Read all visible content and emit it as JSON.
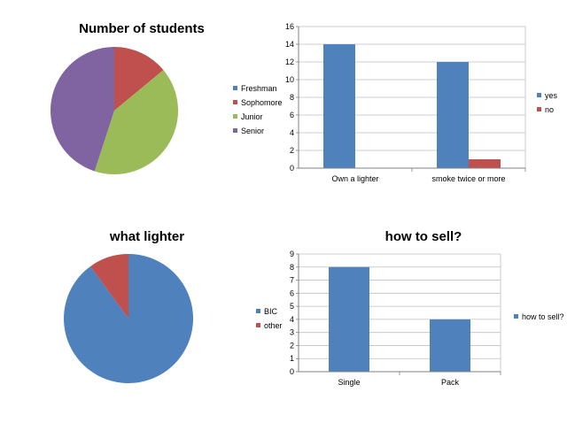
{
  "chart_data": [
    {
      "type": "pie",
      "title": "Number of students",
      "categories": [
        "Freshman",
        "Sophomore",
        "Junior",
        "Senior"
      ],
      "values": [
        0,
        14,
        41,
        45
      ],
      "colors": [
        "#4f81bd",
        "#c0504d",
        "#9bbb59",
        "#8064a2"
      ],
      "legend": "right"
    },
    {
      "type": "bar",
      "title": "",
      "categories": [
        "Own a lighter",
        "smoke twice or more"
      ],
      "series": [
        {
          "name": "yes",
          "values": [
            14,
            12
          ],
          "color": "#4f81bd"
        },
        {
          "name": "no",
          "values": [
            0,
            1
          ],
          "color": "#c0504d"
        }
      ],
      "ylim": [
        0,
        16
      ],
      "yticks": [
        0,
        2,
        4,
        6,
        8,
        10,
        12,
        14,
        16
      ],
      "grid": true,
      "legend": "right"
    },
    {
      "type": "pie",
      "title": "what lighter",
      "categories": [
        "BIC",
        "other"
      ],
      "values": [
        90,
        10
      ],
      "colors": [
        "#4f81bd",
        "#c0504d"
      ],
      "legend": "left"
    },
    {
      "type": "bar",
      "title": "how to sell?",
      "categories": [
        "Single",
        "Pack"
      ],
      "series": [
        {
          "name": "how to sell?",
          "values": [
            8,
            4
          ],
          "color": "#4f81bd"
        }
      ],
      "ylim": [
        0,
        9
      ],
      "yticks": [
        0,
        1,
        2,
        3,
        4,
        5,
        6,
        7,
        8,
        9
      ],
      "grid": true,
      "legend": "right"
    }
  ]
}
